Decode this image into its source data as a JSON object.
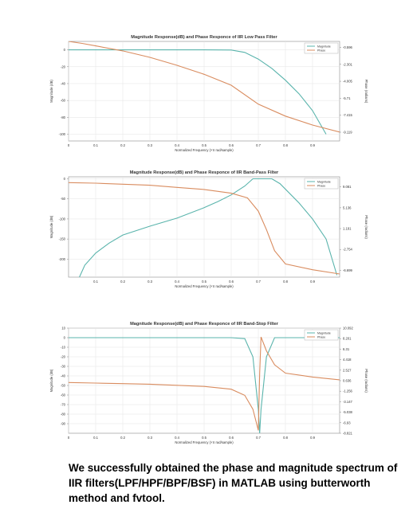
{
  "chart_data": [
    {
      "type": "line",
      "title": "Magnitude Response(dB) and Phase Responce of IIR Low Pass Filter",
      "xlabel": "Normalized Frequency (×π rad/sample)",
      "ylabel": "Magnitude (dB)",
      "y2label": "Phase (radians)",
      "xlim": [
        0,
        1
      ],
      "ylim": [
        -108,
        10
      ],
      "y2lim": [
        -10.0,
        0.0
      ],
      "x_ticks": [
        "0",
        "0.1",
        "0.2",
        "0.3",
        "0.4",
        "0.5",
        "0.6",
        "0.7",
        "0.8",
        "0.9"
      ],
      "y_ticks": [
        "0",
        "-20",
        "-40",
        "-60",
        "-80",
        "-100"
      ],
      "y2_ticks": [
        "-0.596",
        "-2.301",
        "-4.005",
        "-5.71",
        "-7.415",
        "-9.119"
      ],
      "grid": true,
      "legend": "top-right",
      "series": [
        {
          "name": "Magnitude",
          "color": "#5ab4ac",
          "axis": "left",
          "x": [
            0,
            0.1,
            0.2,
            0.3,
            0.4,
            0.5,
            0.6,
            0.65,
            0.7,
            0.75,
            0.8,
            0.85,
            0.9,
            0.95
          ],
          "y": [
            0,
            0,
            0,
            0,
            0,
            0,
            -0.2,
            -3,
            -11,
            -22,
            -36,
            -52,
            -72,
            -100
          ]
        },
        {
          "name": "Phase",
          "color": "#d98c5f",
          "axis": "right",
          "x": [
            0,
            0.05,
            0.1,
            0.2,
            0.3,
            0.4,
            0.5,
            0.6,
            0.7,
            0.8,
            0.9,
            1.0
          ],
          "y": [
            0.0,
            -0.2,
            -0.45,
            -0.95,
            -1.6,
            -2.4,
            -3.3,
            -4.4,
            -6.3,
            -7.5,
            -8.4,
            -9.1
          ]
        }
      ]
    },
    {
      "type": "line",
      "title": "Magnitude Response(dB) and Phase Responce of IIR Band-Pass Filter",
      "xlabel": "Normalized Frequency (×π rad/sample)",
      "ylabel": "Magnitude (dB)",
      "y2label": "Phase (radians)",
      "xlim": [
        0,
        1
      ],
      "ylim": [
        -245,
        5
      ],
      "y2lim": [
        -8.0,
        11.0
      ],
      "x_ticks": [
        "0.1",
        "0.2",
        "0.3",
        "0.4",
        "0.5",
        "0.6",
        "0.7",
        "0.8",
        "0.9"
      ],
      "y_ticks": [
        "0",
        "-50",
        "-100",
        "-150",
        "-200"
      ],
      "y2_ticks": [
        "9.081",
        "5.136",
        "1.191",
        "-2.754",
        "-6.699"
      ],
      "grid": true,
      "legend": "top-right",
      "series": [
        {
          "name": "Magnitude",
          "color": "#5ab4ac",
          "axis": "left",
          "x": [
            0.04,
            0.06,
            0.1,
            0.15,
            0.2,
            0.3,
            0.4,
            0.5,
            0.55,
            0.6,
            0.65,
            0.68,
            0.75,
            0.78,
            0.85,
            0.9,
            0.95,
            0.99
          ],
          "y": [
            -245,
            -215,
            -185,
            -160,
            -140,
            -118,
            -98,
            -72,
            -57,
            -40,
            -18,
            0,
            0,
            -12,
            -60,
            -100,
            -150,
            -240
          ]
        },
        {
          "name": "Phase",
          "color": "#d98c5f",
          "axis": "right",
          "x": [
            0,
            0.1,
            0.2,
            0.3,
            0.4,
            0.5,
            0.6,
            0.66,
            0.7,
            0.73,
            0.76,
            0.8,
            0.9,
            1.0
          ],
          "y": [
            9.9,
            9.8,
            9.6,
            9.4,
            9.0,
            8.6,
            7.9,
            7.0,
            4.5,
            1.0,
            -3.0,
            -5.5,
            -6.6,
            -7.4
          ]
        }
      ]
    },
    {
      "type": "line",
      "title": "Magnitude Response(dB) and Phase Responce of IIR Band-Stop Filter",
      "xlabel": "Normalized Frequency (×π rad/sample)",
      "ylabel": "Magnitude (dB)",
      "y2label": "Phase (radians)",
      "xlim": [
        0,
        1
      ],
      "ylim": [
        -100,
        10
      ],
      "y2lim": [
        -8.821,
        10.092
      ],
      "x_ticks": [
        "0",
        "0.1",
        "0.2",
        "0.3",
        "0.4",
        "0.5",
        "0.6",
        "0.7",
        "0.8",
        "0.9"
      ],
      "y_ticks": [
        "10",
        "0",
        "-10",
        "-20",
        "-30",
        "-40",
        "-50",
        "-60",
        "-70",
        "-80",
        "-90"
      ],
      "y2_ticks": [
        "10.092",
        "8.201",
        "6.31",
        "4.418",
        "2.527",
        "0.636",
        "-1.256",
        "-3.147",
        "-5.038",
        "-6.93",
        "-8.821"
      ],
      "grid": true,
      "legend": "top-right",
      "series": [
        {
          "name": "Magnitude",
          "color": "#5ab4ac",
          "axis": "left",
          "x": [
            0,
            0.6,
            0.65,
            0.68,
            0.7,
            0.705,
            0.71,
            0.73,
            0.76,
            1.0
          ],
          "y": [
            0,
            0,
            -1,
            -20,
            -75,
            -100,
            -75,
            -20,
            0,
            0
          ]
        },
        {
          "name": "Phase",
          "color": "#d98c5f",
          "axis": "right",
          "x": [
            0,
            0.1,
            0.2,
            0.3,
            0.4,
            0.5,
            0.6,
            0.65,
            0.68,
            0.7,
            0.705,
            0.71,
            0.73,
            0.76,
            0.8,
            0.9,
            1.0
          ],
          "y": [
            0.3,
            0.2,
            0.1,
            0.0,
            -0.2,
            -0.4,
            -0.9,
            -2.0,
            -4.5,
            -8.3,
            2.0,
            8.5,
            6.0,
            3.5,
            2.0,
            1.3,
            0.8
          ]
        }
      ]
    }
  ],
  "caption": "We successfully obtained the phase and magnitude spectrum of IIR filters(LPF/HPF/BPF/BSF) in MATLAB using butterworth method and fvtool."
}
